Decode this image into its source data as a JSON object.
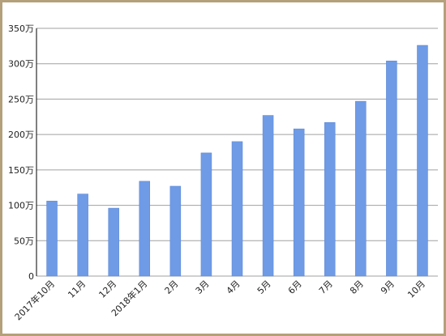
{
  "chart_data": {
    "type": "bar",
    "categories": [
      "2017年10月",
      "11月",
      "12月",
      "2018年1月",
      "2月",
      "3月",
      "4月",
      "5月",
      "6月",
      "7月",
      "8月",
      "9月",
      "10月"
    ],
    "values": [
      106,
      116,
      96,
      134,
      127,
      174,
      190,
      227,
      208,
      217,
      247,
      304,
      326
    ],
    "color": "#6f9be6",
    "ylim": [
      0,
      350
    ],
    "yticks": [
      {
        "value": 0,
        "label": "0"
      },
      {
        "value": 50,
        "label": "50万"
      },
      {
        "value": 100,
        "label": "100万"
      },
      {
        "value": 150,
        "label": "150万"
      },
      {
        "value": 200,
        "label": "200万"
      },
      {
        "value": 250,
        "label": "250万"
      },
      {
        "value": 300,
        "label": "300万"
      },
      {
        "value": 350,
        "label": "350万"
      }
    ],
    "grid": true
  }
}
